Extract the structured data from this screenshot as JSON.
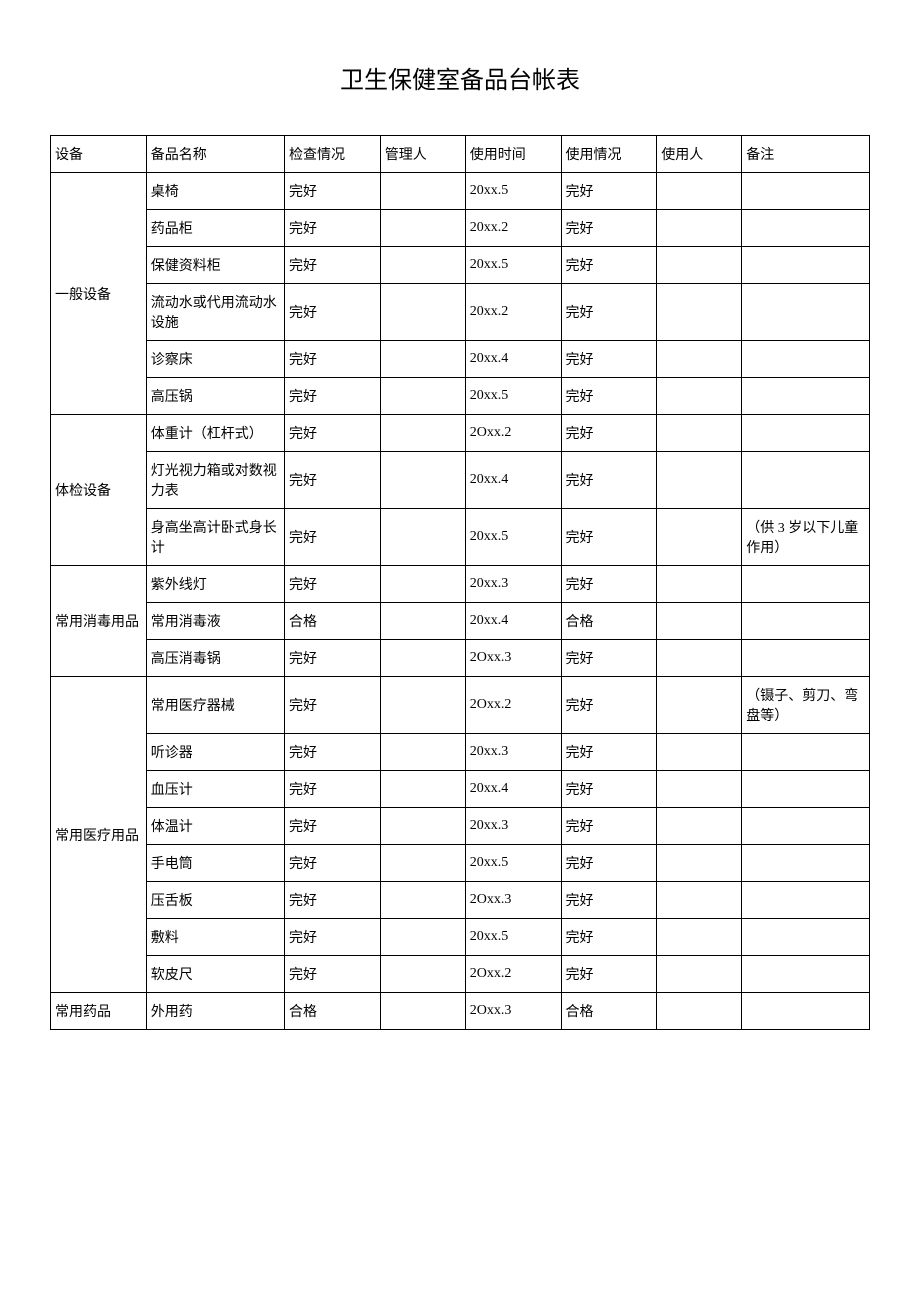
{
  "title": "卫生保健室备品台帐表",
  "columns": [
    "设备",
    "备品名称",
    "检查情况",
    "管理人",
    "使用时间",
    "使用情况",
    "使用人",
    "备注"
  ],
  "groups": [
    {
      "category": "一般设备",
      "rows": [
        {
          "name": "桌椅",
          "check": "完好",
          "manager": "",
          "time": "20xx.5",
          "usage": "完好",
          "user": "",
          "note": ""
        },
        {
          "name": "药品柜",
          "check": "完好",
          "manager": "",
          "time": "20xx.2",
          "usage": "完好",
          "user": "",
          "note": ""
        },
        {
          "name": "保健资料柜",
          "check": "完好",
          "manager": "",
          "time": "20xx.5",
          "usage": "完好",
          "user": "",
          "note": ""
        },
        {
          "name": "流动水或代用流动水设施",
          "check": "完好",
          "manager": "",
          "time": "20xx.2",
          "usage": "完好",
          "user": "",
          "note": ""
        },
        {
          "name": "诊察床",
          "check": "完好",
          "manager": "",
          "time": "20xx.4",
          "usage": "完好",
          "user": "",
          "note": ""
        },
        {
          "name": "高压锅",
          "check": "完好",
          "manager": "",
          "time": "20xx.5",
          "usage": "完好",
          "user": "",
          "note": ""
        }
      ]
    },
    {
      "category": "体检设备",
      "rows": [
        {
          "name": "体重计（杠杆式）",
          "check": "完好",
          "manager": "",
          "time": "2Oxx.2",
          "usage": "完好",
          "user": "",
          "note": ""
        },
        {
          "name": "灯光视力箱或对数视力表",
          "check": "完好",
          "manager": "",
          "time": "20xx.4",
          "usage": "完好",
          "user": "",
          "note": ""
        },
        {
          "name": "身高坐高计卧式身长计",
          "check": "完好",
          "manager": "",
          "time": "20xx.5",
          "usage": "完好",
          "user": "",
          "note": "（供 3 岁以下儿童作用）"
        }
      ]
    },
    {
      "category": "常用消毒用品",
      "rows": [
        {
          "name": "紫外线灯",
          "check": "完好",
          "manager": "",
          "time": "20xx.3",
          "usage": "完好",
          "user": "",
          "note": ""
        },
        {
          "name": "常用消毒液",
          "check": "合格",
          "manager": "",
          "time": "20xx.4",
          "usage": "合格",
          "user": "",
          "note": ""
        },
        {
          "name": "高压消毒锅",
          "check": "完好",
          "manager": "",
          "time": "2Oxx.3",
          "usage": "完好",
          "user": "",
          "note": ""
        }
      ]
    },
    {
      "category": "常用医疗用品",
      "rows": [
        {
          "name": "常用医疗器械",
          "check": "完好",
          "manager": "",
          "time": "2Oxx.2",
          "usage": "完好",
          "user": "",
          "note": "（镊子、剪刀、弯盘等）"
        },
        {
          "name": "听诊器",
          "check": "完好",
          "manager": "",
          "time": "20xx.3",
          "usage": "完好",
          "user": "",
          "note": ""
        },
        {
          "name": "血压计",
          "check": "完好",
          "manager": "",
          "time": "20xx.4",
          "usage": "完好",
          "user": "",
          "note": ""
        },
        {
          "name": "体温计",
          "check": "完好",
          "manager": "",
          "time": "20xx.3",
          "usage": "完好",
          "user": "",
          "note": ""
        },
        {
          "name": "手电筒",
          "check": "完好",
          "manager": "",
          "time": "20xx.5",
          "usage": "完好",
          "user": "",
          "note": ""
        },
        {
          "name": "压舌板",
          "check": "完好",
          "manager": "",
          "time": "2Oxx.3",
          "usage": "完好",
          "user": "",
          "note": ""
        },
        {
          "name": "敷料",
          "check": "完好",
          "manager": "",
          "time": "20xx.5",
          "usage": "完好",
          "user": "",
          "note": ""
        },
        {
          "name": "软皮尺",
          "check": "完好",
          "manager": "",
          "time": "2Oxx.2",
          "usage": "完好",
          "user": "",
          "note": ""
        }
      ]
    },
    {
      "category": "常用药品",
      "rows": [
        {
          "name": "外用药",
          "check": "合格",
          "manager": "",
          "time": "2Oxx.3",
          "usage": "合格",
          "user": "",
          "note": ""
        }
      ]
    }
  ],
  "style": {
    "background_color": "#ffffff",
    "border_color": "#000000",
    "text_color": "#000000",
    "title_fontsize": 24,
    "cell_fontsize": 14,
    "font_family": "SimSun"
  }
}
